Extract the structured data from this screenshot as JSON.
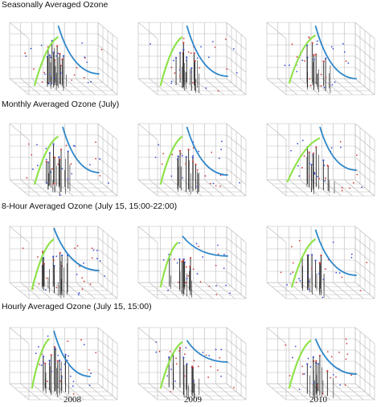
{
  "colors": {
    "green": "#8fe34a",
    "blue": "#2f87c9",
    "stem": "#222222",
    "grid": "#b9b9b9",
    "point_red": "#d23a3a",
    "point_blue": "#3a4fd2"
  },
  "years": [
    "2008",
    "2009",
    "2010"
  ],
  "rows": [
    {
      "title": "Seasonally Averaged Ozone"
    },
    {
      "title": "Monthly Averaged Ozone (July)"
    },
    {
      "title": "8-Hour Averaged Ozone (July 15, 15:00-22:00)"
    },
    {
      "title": "Hourly Averaged Ozone (July 15, 15:00)"
    }
  ],
  "chart_data": {
    "type": "scatter",
    "description_kind": "3d-scatter-with-fitted-curves",
    "panels": [
      [
        {
          "stems": [
            0.32,
            0.36,
            0.4,
            0.44,
            0.48,
            0.52,
            0.38,
            0.46,
            0.42,
            0.5
          ],
          "stem_heights": [
            0.6,
            0.75,
            0.55,
            0.8,
            0.65,
            0.5,
            0.7,
            0.45,
            0.85,
            0.6
          ],
          "green": [
            0.15,
            0.05,
            0.55,
            0.55
          ],
          "blue": [
            0.55,
            0.9,
            0.95,
            0.2
          ]
        },
        {
          "stems": [
            0.34,
            0.38,
            0.42,
            0.46,
            0.5,
            0.54,
            0.4,
            0.48,
            0.44
          ],
          "stem_heights": [
            0.55,
            0.7,
            0.6,
            0.8,
            0.5,
            0.65,
            0.75,
            0.6,
            0.45
          ],
          "green": [
            0.12,
            0.05,
            0.5,
            0.55
          ],
          "blue": [
            0.55,
            0.9,
            0.95,
            0.15
          ]
        },
        {
          "stems": [
            0.34,
            0.38,
            0.42,
            0.46,
            0.5,
            0.54,
            0.4,
            0.48
          ],
          "stem_heights": [
            0.6,
            0.7,
            0.55,
            0.8,
            0.65,
            0.5,
            0.75,
            0.6
          ],
          "green": [
            0.12,
            0.1,
            0.55,
            0.6
          ],
          "blue": [
            0.55,
            0.9,
            0.95,
            0.1
          ]
        }
      ],
      [
        {
          "stems": [
            0.3,
            0.34,
            0.38,
            0.42,
            0.46,
            0.5,
            0.54,
            0.36,
            0.44
          ],
          "stem_heights": [
            0.55,
            0.7,
            0.65,
            0.85,
            0.6,
            0.5,
            0.75,
            0.45,
            0.8
          ],
          "green": [
            0.15,
            0.1,
            0.55,
            0.6
          ],
          "blue": [
            0.6,
            0.9,
            0.95,
            0.25
          ]
        },
        {
          "stems": [
            0.32,
            0.36,
            0.4,
            0.44,
            0.48,
            0.52,
            0.38,
            0.46
          ],
          "stem_heights": [
            0.6,
            0.75,
            0.55,
            0.8,
            0.65,
            0.5,
            0.7,
            0.6
          ],
          "green": [
            0.12,
            0.1,
            0.5,
            0.6
          ],
          "blue": [
            0.55,
            0.9,
            0.95,
            0.2
          ]
        },
        {
          "stems": [
            0.34,
            0.38,
            0.42,
            0.46,
            0.5,
            0.54,
            0.4,
            0.48
          ],
          "stem_heights": [
            0.55,
            0.7,
            0.65,
            0.8,
            0.6,
            0.5,
            0.75,
            0.6
          ],
          "green": [
            0.1,
            0.15,
            0.6,
            0.55
          ],
          "blue": [
            0.6,
            0.9,
            0.95,
            0.3
          ]
        }
      ],
      [
        {
          "stems": [
            0.28,
            0.32,
            0.36,
            0.4,
            0.44,
            0.48,
            0.52,
            0.34,
            0.42
          ],
          "stem_heights": [
            0.65,
            0.7,
            0.55,
            0.85,
            0.6,
            0.5,
            0.75,
            0.45,
            0.8
          ],
          "green": [
            0.12,
            0.05,
            0.5,
            0.6
          ],
          "blue": [
            0.5,
            0.95,
            0.95,
            0.35
          ]
        },
        {
          "stems": [
            0.3,
            0.34,
            0.38,
            0.42,
            0.46,
            0.5,
            0.36,
            0.44
          ],
          "stem_heights": [
            0.55,
            0.65,
            0.6,
            0.75,
            0.5,
            0.45,
            0.7,
            0.55
          ],
          "green": [
            0.12,
            0.1,
            0.45,
            0.5
          ],
          "blue": [
            0.5,
            0.7,
            0.95,
            0.65
          ]
        },
        {
          "stems": [
            0.32,
            0.36,
            0.4,
            0.44,
            0.48,
            0.52,
            0.38,
            0.46
          ],
          "stem_heights": [
            0.6,
            0.7,
            0.65,
            0.8,
            0.55,
            0.5,
            0.75,
            0.6
          ],
          "green": [
            0.15,
            0.1,
            0.55,
            0.6
          ],
          "blue": [
            0.55,
            0.9,
            0.95,
            0.25
          ]
        }
      ],
      [
        {
          "stems": [
            0.28,
            0.32,
            0.36,
            0.4,
            0.44,
            0.48,
            0.52,
            0.34,
            0.42
          ],
          "stem_heights": [
            0.7,
            0.8,
            0.6,
            0.9,
            0.65,
            0.55,
            0.75,
            0.5,
            0.85
          ],
          "green": [
            0.12,
            0.1,
            0.45,
            0.65
          ],
          "blue": [
            0.5,
            0.9,
            0.85,
            0.25
          ]
        },
        {
          "stems": [
            0.3,
            0.34,
            0.38,
            0.42,
            0.46,
            0.5,
            0.36,
            0.44
          ],
          "stem_heights": [
            0.6,
            0.7,
            0.65,
            0.8,
            0.55,
            0.5,
            0.75,
            0.6
          ],
          "green": [
            0.12,
            0.1,
            0.5,
            0.55
          ],
          "blue": [
            0.55,
            0.6,
            0.95,
            0.55
          ]
        },
        {
          "stems": [
            0.32,
            0.36,
            0.4,
            0.44,
            0.48,
            0.52,
            0.38,
            0.46
          ],
          "stem_heights": [
            0.6,
            0.7,
            0.65,
            0.8,
            0.55,
            0.5,
            0.75,
            0.6
          ],
          "green": [
            0.12,
            0.1,
            0.5,
            0.6
          ],
          "blue": [
            0.55,
            0.65,
            0.95,
            0.3
          ]
        }
      ]
    ]
  }
}
